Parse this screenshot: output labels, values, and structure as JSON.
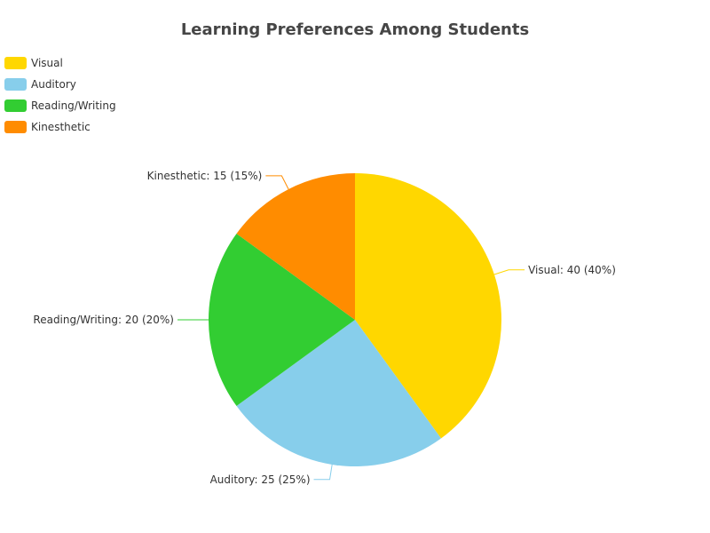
{
  "chart_data": {
    "type": "pie",
    "title": "Learning Preferences Among Students",
    "legend_position": "top-left",
    "slices": [
      {
        "name": "Visual",
        "value": 40,
        "percent": "40%",
        "color": "#FFD700",
        "label": "Visual: 40 (40%)"
      },
      {
        "name": "Auditory",
        "value": 25,
        "percent": "25%",
        "color": "#87CEEB",
        "label": "Auditory: 25 (25%)"
      },
      {
        "name": "Reading/Writing",
        "value": 20,
        "percent": "20%",
        "color": "#32CD32",
        "label": "Reading/Writing: 20 (20%)"
      },
      {
        "name": "Kinesthetic",
        "value": 15,
        "percent": "15%",
        "color": "#FF8C00",
        "label": "Kinesthetic: 15 (15%)"
      }
    ]
  }
}
